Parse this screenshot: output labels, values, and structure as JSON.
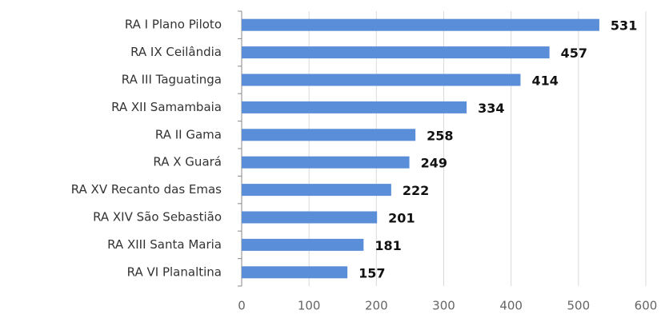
{
  "chart_data": {
    "type": "bar",
    "orientation": "horizontal",
    "categories": [
      "RA I Plano Piloto",
      "RA IX Ceilândia",
      "RA III Taguatinga",
      "RA XII Samambaia",
      "RA II Gama",
      "RA X Guará",
      "RA XV Recanto das Emas",
      "RA XIV São Sebastião",
      "RA XIII Santa Maria",
      "RA VI Planaltina"
    ],
    "values": [
      531,
      457,
      414,
      334,
      258,
      249,
      222,
      201,
      181,
      157
    ],
    "color": "#5b8ed8",
    "xlim": [
      0,
      600
    ],
    "xticks": [
      0,
      100,
      200,
      300,
      400,
      500,
      600
    ],
    "grid": true
  }
}
